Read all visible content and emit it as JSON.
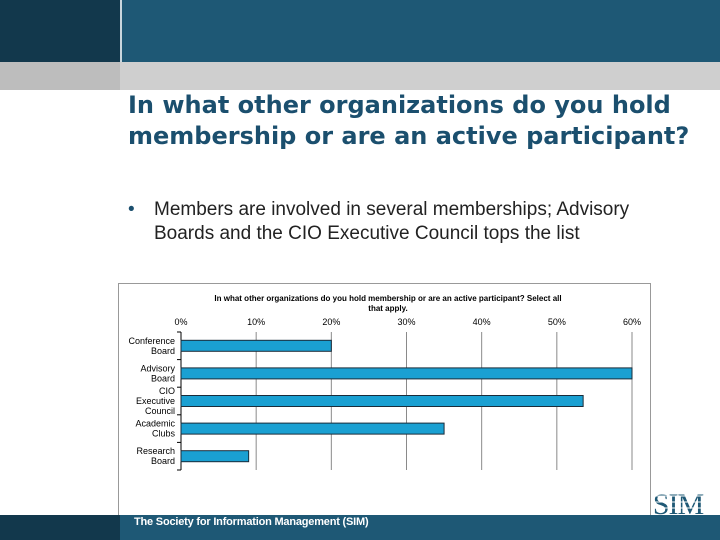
{
  "slide": {
    "title": "In what other organizations do you hold membership or are an active participant?",
    "bullet": "Members are involved in several memberships; Advisory Boards and the CIO Executive Council tops the list",
    "bullet_marker": "•"
  },
  "footer": {
    "text": "The Society for Information Management (SIM)",
    "logo_text": "SIM"
  },
  "colors": {
    "header": "#1e5875",
    "header_dark": "#12384c",
    "title": "#1b4f6e",
    "bar_fill": "#1aa0d2",
    "bar_stroke": "#1a2c3a"
  },
  "chart_data": {
    "type": "bar",
    "orientation": "horizontal",
    "title": "In what other organizations do you hold membership or are an active participant? Select all that apply.",
    "categories": [
      "Conference Board",
      "Advisory Board",
      "CIO Executive Council",
      "Academic Clubs",
      "Research Board"
    ],
    "values": [
      20,
      60,
      53.5,
      35,
      9
    ],
    "xlim": [
      0,
      60
    ],
    "x_ticks": [
      "0%",
      "10%",
      "20%",
      "30%",
      "40%",
      "50%",
      "60%"
    ],
    "grid": true,
    "legend": "none"
  }
}
